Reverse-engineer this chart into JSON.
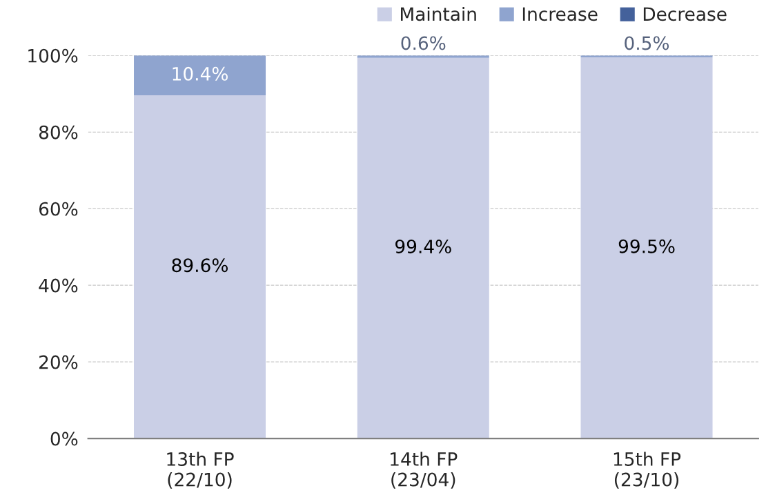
{
  "chart_data": {
    "type": "bar",
    "stacked": true,
    "categories": [
      "13th FP\n(22/10)",
      "14th FP\n(23/04)",
      "15th FP\n(23/10)"
    ],
    "series": [
      {
        "name": "Maintain",
        "color": "#cacfe6",
        "values": [
          89.6,
          99.4,
          99.5
        ],
        "value_labels": [
          "89.6%",
          "99.4%",
          "99.5%"
        ]
      },
      {
        "name": "Increase",
        "color": "#8fa4cf",
        "values": [
          10.4,
          0.6,
          0.5
        ],
        "value_labels": [
          "10.4%",
          "0.6%",
          "0.5%"
        ]
      },
      {
        "name": "Decrease",
        "color": "#44619b",
        "values": [
          0,
          0,
          0
        ]
      }
    ],
    "ylim": [
      0,
      100
    ],
    "yticks": [
      {
        "value": 0,
        "label": "0%"
      },
      {
        "value": 20,
        "label": "20%"
      },
      {
        "value": 40,
        "label": "40%"
      },
      {
        "value": 60,
        "label": "60%"
      },
      {
        "value": 80,
        "label": "80%"
      },
      {
        "value": 100,
        "label": "100%"
      }
    ],
    "grid": "y",
    "legend": "top right"
  }
}
